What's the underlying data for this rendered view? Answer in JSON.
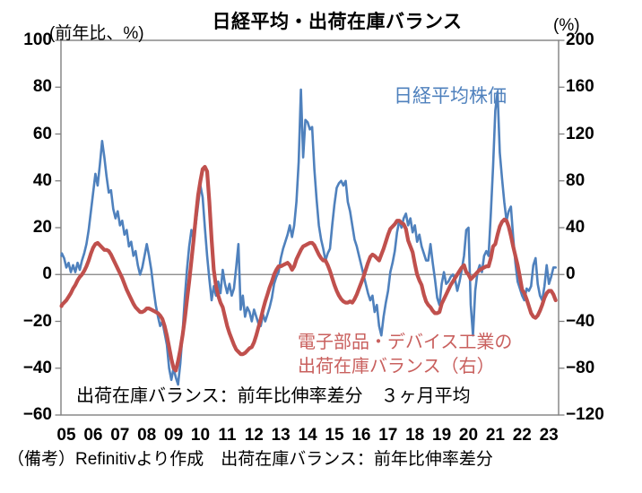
{
  "title": "日経平均・出荷在庫バランス",
  "caption": "（備考）Refinitivより作成　出荷在庫バランス：前年比伸率差分",
  "annotation": "出荷在庫バランス：前年比伸率差分　３ヶ月平均",
  "legend": {
    "nikkei": "日経平均株価",
    "balance_line1": "電子部品・デバイス工業の",
    "balance_line2": "出荷在庫バランス（右）"
  },
  "colors": {
    "nikkei_line": "#4f81bd",
    "balance_line": "#c0504d",
    "nikkei_text": "#4f81bd",
    "balance_text": "#c9605e",
    "axis": "#7f7f7f",
    "zero_line": "#808080"
  },
  "chart_data": {
    "type": "line",
    "title": "日経平均・出荷在庫バランス",
    "frequency": "monthly",
    "start_year_fraction": 2004.75,
    "left_axis": {
      "label": "(前年比、%)",
      "range": [
        -60,
        100
      ],
      "tick_values": [
        100,
        80,
        60,
        40,
        20,
        0,
        -20,
        -40,
        -60
      ],
      "tick_labels": [
        "100",
        "80",
        "60",
        "40",
        "20",
        "0",
        "−20",
        "−40",
        "−60"
      ]
    },
    "right_axis": {
      "label": "(%)",
      "range": [
        -120,
        200
      ],
      "tick_values": [
        200,
        160,
        120,
        80,
        40,
        0,
        -40,
        -80,
        -120
      ],
      "tick_labels": [
        "200",
        "160",
        "120",
        "80",
        "40",
        "0",
        "−40",
        "−80",
        "−120"
      ]
    },
    "x_axis": {
      "tick_years": [
        2005,
        2006,
        2007,
        2008,
        2009,
        2010,
        2011,
        2012,
        2013,
        2014,
        2015,
        2016,
        2017,
        2018,
        2019,
        2020,
        2021,
        2022,
        2023
      ],
      "tick_labels": [
        "05",
        "06",
        "07",
        "08",
        "09",
        "10",
        "11",
        "12",
        "13",
        "14",
        "15",
        "16",
        "17",
        "18",
        "19",
        "20",
        "21",
        "22",
        "23"
      ]
    },
    "grid": "zero-line-only",
    "legend_position": "text-labels-inside-plot",
    "series": [
      {
        "name": "日経平均株価",
        "axis": "left",
        "color": "#4f81bd",
        "width": 2.6,
        "values": [
          8,
          9,
          7,
          3,
          5,
          1,
          4,
          1,
          5,
          2,
          6,
          9,
          13,
          19,
          27,
          35,
          43,
          38,
          47,
          57,
          50,
          42,
          35,
          36,
          28,
          24,
          27,
          21,
          23,
          17,
          19,
          12,
          14,
          8,
          10,
          4,
          0,
          3,
          8,
          13,
          8,
          2,
          -6,
          -13,
          -18,
          -22,
          -20,
          -25,
          -30,
          -40,
          -45,
          -40,
          -44,
          -47,
          -38,
          -25,
          -10,
          2,
          12,
          19,
          15,
          22,
          30,
          38,
          33,
          20,
          8,
          -2,
          -11,
          -5,
          -9,
          -3,
          -8,
          2,
          -4,
          -8,
          -4,
          -9,
          -6,
          3,
          13,
          -15,
          -9,
          -18,
          -14,
          -16,
          -20,
          -15,
          -18,
          -21,
          -22,
          -17,
          -20,
          -17,
          -14,
          -10,
          -4,
          -1,
          1,
          7,
          11,
          14,
          17,
          21,
          16,
          21,
          31,
          48,
          79,
          50,
          66,
          65,
          62,
          63,
          45,
          32,
          21,
          15,
          11,
          6,
          9,
          11,
          21,
          30,
          37,
          39,
          40,
          38,
          40,
          31,
          27,
          21,
          15,
          12,
          8,
          4,
          0,
          -4,
          -8,
          -11,
          -9,
          -16,
          -13,
          -22,
          -26,
          -18,
          -12,
          -7,
          1,
          5,
          10,
          18,
          23,
          20,
          24,
          26,
          21,
          24,
          18,
          21,
          14,
          17,
          12,
          9,
          6,
          6,
          13,
          5,
          -2,
          -10,
          -13,
          -4,
          1,
          -4,
          -3,
          -1,
          0,
          -2,
          -7,
          -3,
          2,
          8,
          19,
          20,
          -13,
          -26,
          -7,
          1,
          4,
          1,
          8,
          10,
          8,
          26,
          46,
          70,
          78,
          52,
          41,
          31,
          23,
          27,
          29,
          16,
          5,
          -3,
          -6,
          -9,
          -11,
          -6,
          -7,
          -5,
          4,
          7,
          -4,
          -9,
          -11,
          -5,
          4,
          -4,
          -1,
          3,
          3
        ]
      },
      {
        "name": "電子部品・デバイス工業の出荷在庫バランス（右）",
        "axis": "right",
        "color": "#c0504d",
        "width": 4.2,
        "values": [
          -27,
          -26,
          -24,
          -22,
          -19,
          -16,
          -12,
          -9,
          -5,
          -2,
          0,
          3,
          7,
          12,
          18,
          23,
          26,
          27,
          25,
          23,
          21,
          21,
          20,
          17,
          13,
          9,
          5,
          1,
          -3,
          -8,
          -13,
          -17,
          -21,
          -25,
          -28,
          -30,
          -32,
          -32,
          -31,
          -29,
          -29,
          -30,
          -31,
          -32,
          -33,
          -35,
          -38,
          -44,
          -52,
          -62,
          -72,
          -80,
          -82,
          -74,
          -64,
          -52,
          -38,
          -22,
          -6,
          12,
          30,
          50,
          68,
          80,
          90,
          92,
          88,
          62,
          30,
          4,
          -10,
          -18,
          -24,
          -28,
          -36,
          -44,
          -50,
          -55,
          -60,
          -64,
          -66,
          -68,
          -68,
          -67,
          -65,
          -63,
          -62,
          -58,
          -52,
          -45,
          -38,
          -30,
          -23,
          -17,
          -11,
          -6,
          0,
          4,
          7,
          7,
          8,
          9,
          10,
          8,
          4,
          7,
          13,
          17,
          21,
          24,
          25,
          26,
          27,
          27,
          25,
          21,
          17,
          14,
          12,
          12,
          8,
          3,
          -3,
          -9,
          -14,
          -18,
          -21,
          -23,
          -24,
          -24,
          -23,
          -24,
          -21,
          -17,
          -12,
          -7,
          -2,
          4,
          10,
          15,
          17,
          16,
          14,
          12,
          17,
          22,
          28,
          34,
          39,
          41,
          43,
          46,
          46,
          44,
          43,
          39,
          29,
          24,
          19,
          9,
          0,
          -5,
          -9,
          -17,
          -23,
          -26,
          -28,
          -31,
          -33,
          -33,
          -32,
          -25,
          -21,
          -17,
          -13,
          -9,
          -6,
          -3,
          0,
          3,
          6,
          8,
          2,
          0,
          -4,
          -2,
          0,
          2,
          4,
          5,
          6,
          7,
          7,
          14,
          24,
          26,
          34,
          41,
          45,
          47,
          46,
          41,
          33,
          24,
          16,
          8,
          -2,
          -13,
          -16,
          -21,
          -27,
          -33,
          -36,
          -37,
          -35,
          -31,
          -26,
          -20,
          -16,
          -14,
          -14,
          -17,
          -22
        ]
      }
    ],
    "annotation": "出荷在庫バランス：前年比伸率差分　３ヶ月平均",
    "note": "（備考）Refinitivより作成　出荷在庫バランス：前年比伸率差分"
  }
}
